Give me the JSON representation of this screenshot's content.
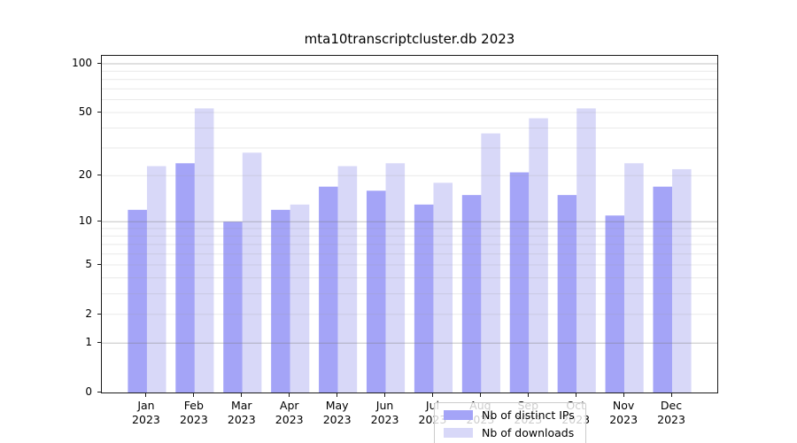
{
  "chart_data": {
    "type": "bar",
    "title": "mta10transcriptcluster.db 2023",
    "categories": [
      "Jan 2023",
      "Feb 2023",
      "Mar 2023",
      "Apr 2023",
      "May 2023",
      "Jun 2023",
      "Jul 2023",
      "Aug 2023",
      "Sep 2023",
      "Oct 2023",
      "Nov 2023",
      "Dec 2023"
    ],
    "series": [
      {
        "name": "Nb of distinct IPs",
        "color": "#a4a4f7",
        "values": [
          12,
          24,
          10,
          12,
          17,
          16,
          13,
          15,
          21,
          15,
          11,
          17
        ]
      },
      {
        "name": "Nb of downloads",
        "color": "#d8d8f8",
        "values": [
          23,
          53,
          28,
          13,
          23,
          24,
          18,
          37,
          46,
          53,
          24,
          22
        ]
      }
    ],
    "xlabel": "",
    "ylabel": "",
    "y_scale": "log1p",
    "ylim": [
      0,
      112
    ],
    "y_tick_labels": [
      100,
      50,
      20,
      10,
      5,
      2,
      1,
      0
    ],
    "y_major_gridlines": [
      1,
      10,
      100
    ],
    "y_minor_gridlines": [
      2,
      3,
      4,
      5,
      6,
      7,
      8,
      9,
      20,
      30,
      40,
      50,
      60,
      70,
      80,
      90
    ],
    "grid": true,
    "legend_position": "bottom-center"
  },
  "colors": {
    "background": "#ffffff",
    "axis": "#1a1a1a",
    "major_grid": "#c6c6c6",
    "minor_grid": "#eaeaea"
  }
}
